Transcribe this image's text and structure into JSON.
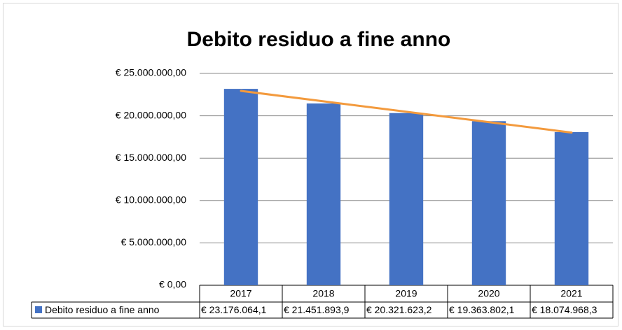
{
  "chart_data": {
    "type": "bar",
    "title": "Debito residuo a fine anno",
    "categories": [
      "2017",
      "2018",
      "2019",
      "2020",
      "2021"
    ],
    "series": [
      {
        "name": "Debito residuo a fine anno",
        "color": "#4472c4",
        "values": [
          23176064.1,
          21451893.9,
          20321623.2,
          19363802.1,
          18074968.3
        ],
        "value_labels": [
          "€ 23.176.064,1",
          "€ 21.451.893,9",
          "€ 20.321.623,2",
          "€ 19.363.802,1",
          "€ 18.074.968,3"
        ]
      }
    ],
    "trendline": {
      "type": "linear",
      "color": "#f39a3d"
    },
    "ylim": [
      0,
      25000000
    ],
    "yticks": [
      {
        "value": 0,
        "label": "€ 0,00"
      },
      {
        "value": 5000000,
        "label": "€ 5.000.000,00"
      },
      {
        "value": 10000000,
        "label": "€ 10.000.000,00"
      },
      {
        "value": 15000000,
        "label": "€ 15.000.000,00"
      },
      {
        "value": 20000000,
        "label": "€ 20.000.000,00"
      },
      {
        "value": 25000000,
        "label": "€ 25.000.000,00"
      }
    ],
    "grid": true,
    "data_table": true
  }
}
